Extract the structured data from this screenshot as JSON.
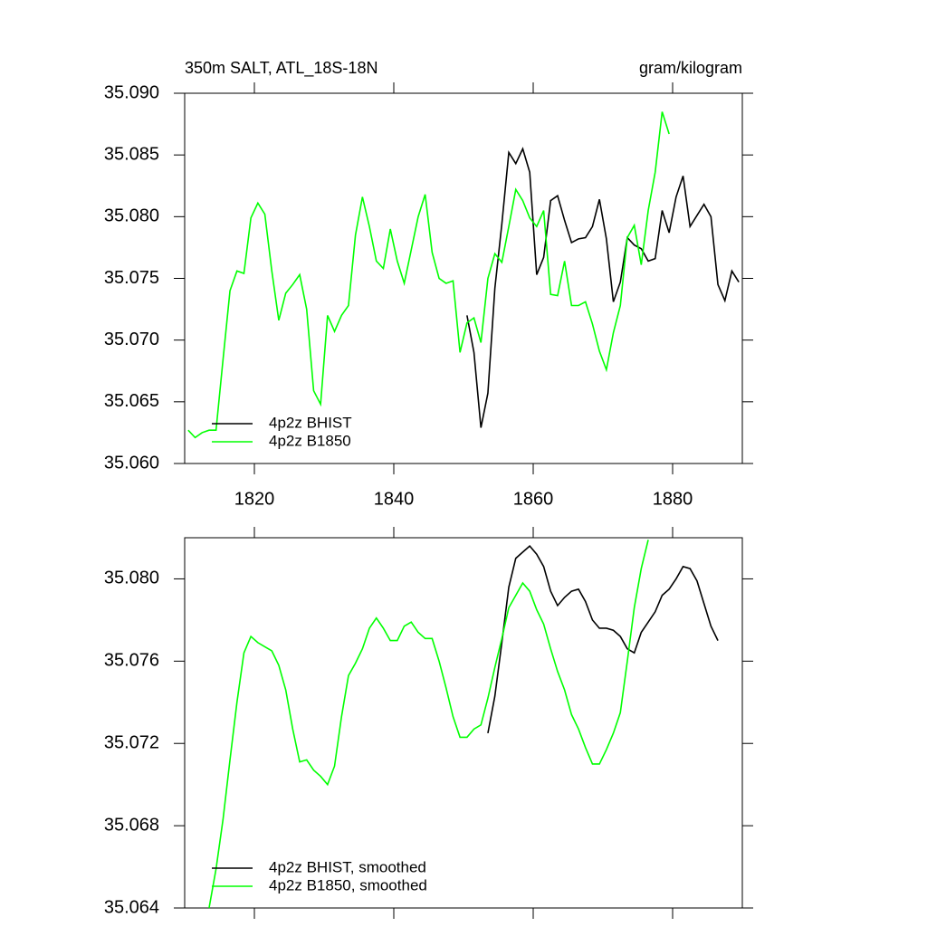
{
  "chart_data": [
    {
      "type": "line",
      "title": "350m SALT, ATL_18S-18N",
      "units": "gram/kilogram",
      "x": [
        1810.5,
        1811.5,
        1812.5,
        1813.5,
        1814.5,
        1815.5,
        1816.5,
        1817.5,
        1818.5,
        1819.5,
        1820.5,
        1821.5,
        1822.5,
        1823.5,
        1824.5,
        1825.5,
        1826.5,
        1827.5,
        1828.5,
        1829.5,
        1830.5,
        1831.5,
        1832.5,
        1833.5,
        1834.5,
        1835.5,
        1836.5,
        1837.5,
        1838.5,
        1839.5,
        1840.5,
        1841.5,
        1842.5,
        1843.5,
        1844.5,
        1845.5,
        1846.5,
        1847.5,
        1848.5,
        1849.5,
        1850.5,
        1851.5,
        1852.5,
        1853.5,
        1854.5,
        1855.5,
        1856.5,
        1857.5,
        1858.5,
        1859.5,
        1860.5,
        1861.5,
        1862.5,
        1863.5,
        1864.5,
        1865.5,
        1866.5,
        1867.5,
        1868.5,
        1869.5,
        1870.5,
        1871.5,
        1872.5,
        1873.5,
        1874.5,
        1875.5,
        1876.5,
        1877.5,
        1878.5,
        1879.5,
        1880.5,
        1881.5,
        1882.5,
        1883.5,
        1884.5,
        1885.5,
        1886.5,
        1887.5,
        1888.5,
        1889.5
      ],
      "xlim": [
        1810,
        1890
      ],
      "xticks": [
        1820,
        1840,
        1860,
        1880
      ],
      "xtick_labels": true,
      "ylim": [
        35.06,
        35.09
      ],
      "yticks": [
        {
          "value": 35.06,
          "label": "35.060"
        },
        35.065,
        {
          "value": 35.07,
          "label": "35.070"
        },
        35.075,
        {
          "value": 35.08,
          "label": "35.080"
        },
        35.085,
        {
          "value": 35.09,
          "label": "35.090"
        }
      ],
      "legend": "lower left",
      "series": [
        {
          "name": "4p2z BHIST",
          "color": "#000000",
          "values": [
            null,
            null,
            null,
            null,
            null,
            null,
            null,
            null,
            null,
            null,
            null,
            null,
            null,
            null,
            null,
            null,
            null,
            null,
            null,
            null,
            null,
            null,
            null,
            null,
            null,
            null,
            null,
            null,
            null,
            null,
            null,
            null,
            null,
            null,
            null,
            null,
            null,
            null,
            null,
            null,
            35.072,
            35.069,
            35.0629,
            35.0657,
            35.0742,
            35.0794,
            35.0852,
            35.0843,
            35.0855,
            35.0836,
            35.0753,
            35.0767,
            35.0813,
            35.0817,
            35.0797,
            35.0779,
            35.0782,
            35.0783,
            35.0792,
            35.0814,
            35.0782,
            35.0731,
            35.0747,
            35.0783,
            35.0777,
            35.0774,
            35.0764,
            35.0766,
            35.0805,
            35.0787,
            35.0816,
            35.0833,
            35.0792,
            35.0801,
            35.081,
            35.08,
            35.0745,
            35.0732,
            35.0756,
            35.0747
          ]
        },
        {
          "name": "4p2z B1850",
          "color": "#00ff00",
          "values": [
            35.0627,
            35.0621,
            35.0625,
            35.0627,
            35.0627,
            35.0684,
            35.074,
            35.0756,
            35.0754,
            35.0799,
            35.0811,
            35.0802,
            35.0756,
            35.0716,
            35.0738,
            35.0745,
            35.0753,
            35.0725,
            35.0659,
            35.0648,
            35.072,
            35.0707,
            35.072,
            35.0728,
            35.0785,
            35.0816,
            35.0792,
            35.0764,
            35.0758,
            35.079,
            35.0764,
            35.0746,
            35.0773,
            35.08,
            35.0818,
            35.0771,
            35.075,
            35.0746,
            35.0748,
            35.069,
            35.0714,
            35.0718,
            35.0698,
            35.075,
            35.077,
            35.0763,
            35.0792,
            35.0822,
            35.0813,
            35.0799,
            35.0792,
            35.0805,
            35.0737,
            35.0736,
            35.0764,
            35.0728,
            35.0728,
            35.0731,
            35.0713,
            35.0691,
            35.0676,
            35.0706,
            35.0728,
            35.0783,
            35.0793,
            35.0761,
            35.0805,
            35.0836,
            35.0885,
            35.0867,
            null,
            null,
            null,
            null,
            null,
            null,
            null,
            null,
            null,
            null
          ]
        }
      ]
    },
    {
      "type": "line",
      "x": [
        1810.5,
        1811.5,
        1812.5,
        1813.5,
        1814.5,
        1815.5,
        1816.5,
        1817.5,
        1818.5,
        1819.5,
        1820.5,
        1821.5,
        1822.5,
        1823.5,
        1824.5,
        1825.5,
        1826.5,
        1827.5,
        1828.5,
        1829.5,
        1830.5,
        1831.5,
        1832.5,
        1833.5,
        1834.5,
        1835.5,
        1836.5,
        1837.5,
        1838.5,
        1839.5,
        1840.5,
        1841.5,
        1842.5,
        1843.5,
        1844.5,
        1845.5,
        1846.5,
        1847.5,
        1848.5,
        1849.5,
        1850.5,
        1851.5,
        1852.5,
        1853.5,
        1854.5,
        1855.5,
        1856.5,
        1857.5,
        1858.5,
        1859.5,
        1860.5,
        1861.5,
        1862.5,
        1863.5,
        1864.5,
        1865.5,
        1866.5,
        1867.5,
        1868.5,
        1869.5,
        1870.5,
        1871.5,
        1872.5,
        1873.5,
        1874.5,
        1875.5,
        1876.5,
        1877.5,
        1878.5,
        1879.5,
        1880.5,
        1881.5,
        1882.5,
        1883.5,
        1884.5,
        1885.5,
        1886.5,
        1887.5,
        1888.5,
        1889.5
      ],
      "xlim": [
        1810,
        1890
      ],
      "xticks": [
        1820,
        1840,
        1860,
        1880
      ],
      "xtick_labels": false,
      "ylim": [
        35.064,
        35.082
      ],
      "yticks": [
        35.064,
        35.068,
        35.072,
        35.076,
        {
          "value": 35.08,
          "label": "35.080"
        }
      ],
      "legend": "lower left",
      "series": [
        {
          "name": "4p2z BHIST, smoothed",
          "color": "#000000",
          "values": [
            null,
            null,
            null,
            null,
            null,
            null,
            null,
            null,
            null,
            null,
            null,
            null,
            null,
            null,
            null,
            null,
            null,
            null,
            null,
            null,
            null,
            null,
            null,
            null,
            null,
            null,
            null,
            null,
            null,
            null,
            null,
            null,
            null,
            null,
            null,
            null,
            null,
            null,
            null,
            null,
            null,
            null,
            null,
            35.0725,
            35.0743,
            35.0769,
            35.0796,
            35.081,
            35.0813,
            35.0816,
            35.0812,
            35.0806,
            35.0794,
            35.0787,
            35.0791,
            35.0794,
            35.0795,
            35.0789,
            35.078,
            35.0776,
            35.0776,
            35.0775,
            35.0772,
            35.0766,
            35.0764,
            35.0774,
            35.0779,
            35.0784,
            35.0792,
            35.0795,
            35.08,
            35.0806,
            35.0805,
            35.0799,
            35.0788,
            35.0777,
            35.077,
            null,
            null,
            null
          ]
        },
        {
          "name": "4p2z B1850, smoothed",
          "color": "#00ff00",
          "values": [
            null,
            null,
            null,
            35.064,
            35.0659,
            35.0683,
            35.0712,
            35.074,
            35.0764,
            35.0772,
            35.0769,
            35.0767,
            35.0765,
            35.0758,
            35.0746,
            35.0727,
            35.0711,
            35.0712,
            35.0707,
            35.0704,
            35.07,
            35.0709,
            35.0733,
            35.0753,
            35.0759,
            35.0766,
            35.0776,
            35.0781,
            35.0776,
            35.077,
            35.077,
            35.0777,
            35.0779,
            35.0774,
            35.0771,
            35.0771,
            35.076,
            35.0747,
            35.0733,
            35.0723,
            35.0723,
            35.0727,
            35.0729,
            35.0742,
            35.0757,
            35.0771,
            35.0786,
            35.0792,
            35.0798,
            35.0794,
            35.0785,
            35.0778,
            35.0766,
            35.0755,
            35.0746,
            35.0734,
            35.0727,
            35.0718,
            35.071,
            35.071,
            35.0717,
            35.0725,
            35.0735,
            35.076,
            35.0786,
            35.0805,
            35.0819,
            null,
            null,
            null,
            null,
            null,
            null,
            null,
            null,
            null,
            null,
            null,
            null,
            null
          ]
        }
      ]
    }
  ]
}
